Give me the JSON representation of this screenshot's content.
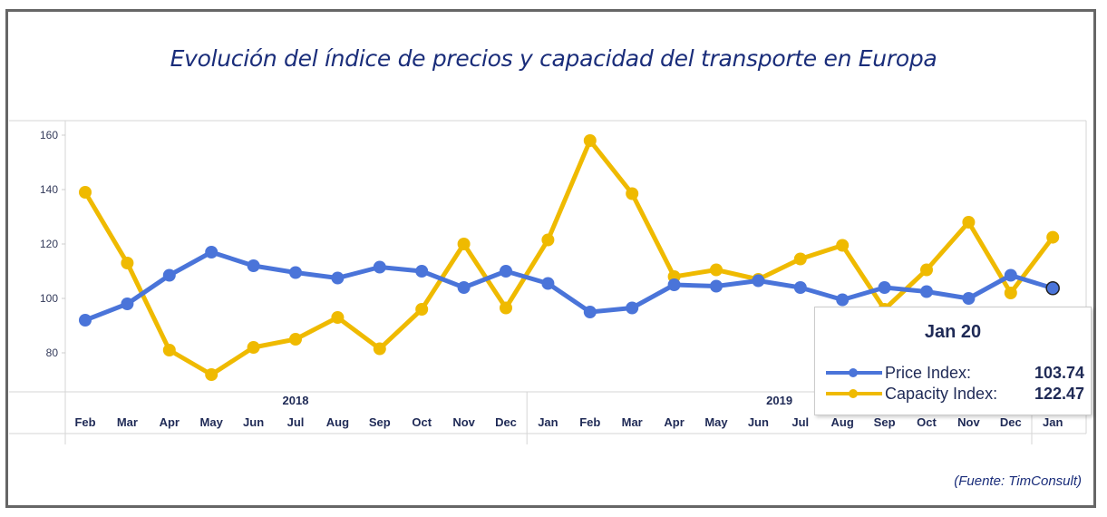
{
  "title": "Evolución del índice de precios y capacidad del transporte en Europa",
  "source": "(Fuente: TimConsult)",
  "colors": {
    "price": "#4a74d9",
    "capacity": "#efba00",
    "text": "#1f2a56"
  },
  "tooltip": {
    "title": "Jan 20",
    "rows": [
      {
        "label": "Price Index:",
        "value": "103.74"
      },
      {
        "label": "Capacity Index:",
        "value": "122.47"
      }
    ]
  },
  "chart_data": {
    "type": "line",
    "title": "Evolución del índice de precios y capacidad del transporte en Europa",
    "xlabel": "",
    "ylabel": "",
    "ylim": [
      60,
      165
    ],
    "yticks": [
      80,
      100,
      120,
      140,
      160
    ],
    "grid": false,
    "legend": "tooltip (bottom-right)",
    "categories": [
      "Feb",
      "Mar",
      "Apr",
      "May",
      "Jun",
      "Jul",
      "Aug",
      "Sep",
      "Oct",
      "Nov",
      "Dec",
      "Jan",
      "Feb",
      "Mar",
      "Apr",
      "May",
      "Jun",
      "Jul",
      "Aug",
      "Sep",
      "Oct",
      "Nov",
      "Dec",
      "Jan"
    ],
    "year_groups": [
      {
        "label": "2018",
        "start": 0,
        "end": 10
      },
      {
        "label": "2019",
        "start": 11,
        "end": 22
      },
      {
        "label": "",
        "start": 23,
        "end": 23
      }
    ],
    "series": [
      {
        "name": "Price Index",
        "values": [
          92,
          98,
          108.5,
          117,
          112,
          109.5,
          107.5,
          111.5,
          110,
          104,
          110,
          105.5,
          95,
          96.5,
          105,
          104.5,
          106.5,
          104,
          99.5,
          104,
          102.5,
          100,
          108.5,
          103.74
        ]
      },
      {
        "name": "Capacity Index",
        "values": [
          139,
          113,
          81,
          72,
          82,
          85,
          93,
          81.5,
          96,
          120,
          96.5,
          121.5,
          158,
          138.5,
          108,
          110.5,
          107,
          114.5,
          119.5,
          96,
          110.5,
          128,
          102,
          122.47
        ]
      }
    ],
    "highlighted_index": 23
  }
}
